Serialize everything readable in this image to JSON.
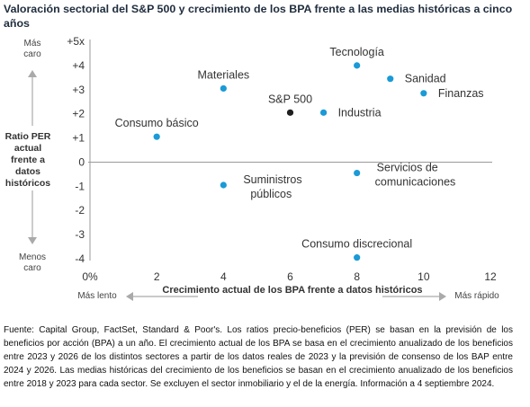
{
  "title": "Valoración sectorial del S&P 500 y crecimiento de los BPA frente a las medias históricas a cinco años",
  "y_axis_title": "Ratio PER actual frente a datos históricos",
  "y_top_hint": "Más caro",
  "y_bottom_hint": "Menos caro",
  "x_axis_title": "Crecimiento actual de los BPA frente a datos históricos",
  "x_left_hint": "Más lento",
  "x_right_hint": "Más rápido",
  "footnote": "Fuente: Capital Group, FactSet, Standard & Poor's. Los ratios precio-beneficios (PER) se basan en la previsión de los beneficios por acción (BPA) a un año. El crecimiento actual de los BPA se basa en el crecimiento anualizado de los beneficios entre 2023 y 2026 de los distintos sectores a partir de los datos reales de 2023 y la previsión de consenso de los BAP entre 2024 y 2026. Las medias históricas del crecimiento de los beneficios se basan en el crecimiento anualizado de los beneficios entre 2018 y 2023 para cada sector. Se excluyen el sector inmobiliario y el de la energía. Información a 4 septiembre 2024.",
  "colors": {
    "point": "#1a9ad6",
    "index_point": "#1f1f1f",
    "axis": "#9a9a9a"
  },
  "chart_data": {
    "type": "scatter",
    "xlim": [
      0,
      12
    ],
    "ylim": [
      -4,
      5
    ],
    "x_ticks": [
      0,
      2,
      4,
      6,
      8,
      10,
      12
    ],
    "x_tick_labels": [
      "0%",
      "2",
      "4",
      "6",
      "8",
      "10",
      "12"
    ],
    "y_ticks": [
      5,
      4,
      3,
      2,
      1,
      0,
      -1,
      -2,
      -3,
      -4
    ],
    "y_tick_labels": [
      "+5x",
      "+4",
      "+3",
      "+2",
      "+1",
      "0",
      "-1",
      "-2",
      "-3",
      "-4"
    ],
    "grid": false,
    "points": [
      {
        "label": "Tecnología",
        "x": 8,
        "y": 4.0,
        "color": "#1a9ad6",
        "label_pos": "above"
      },
      {
        "label": "Sanidad",
        "x": 9,
        "y": 3.45,
        "color": "#1a9ad6",
        "label_pos": "right"
      },
      {
        "label": "Finanzas",
        "x": 10,
        "y": 2.85,
        "color": "#1a9ad6",
        "label_pos": "right"
      },
      {
        "label": "Materiales",
        "x": 4,
        "y": 3.05,
        "color": "#1a9ad6",
        "label_pos": "above"
      },
      {
        "label": "S&P 500",
        "x": 6,
        "y": 2.05,
        "color": "#1f1f1f",
        "label_pos": "above"
      },
      {
        "label": "Industria",
        "x": 7,
        "y": 2.05,
        "color": "#1a9ad6",
        "label_pos": "right"
      },
      {
        "label": "Consumo básico",
        "x": 2,
        "y": 1.05,
        "color": "#1a9ad6",
        "label_pos": "above"
      },
      {
        "label": "Servicios de comunicaciones",
        "x": 8,
        "y": -0.45,
        "color": "#1a9ad6",
        "label_pos": "right"
      },
      {
        "label": "Suministros públicos",
        "x": 4,
        "y": -0.95,
        "color": "#1a9ad6",
        "label_pos": "right"
      },
      {
        "label": "Consumo discrecional",
        "x": 8,
        "y": -3.95,
        "color": "#1a9ad6",
        "label_pos": "above"
      }
    ]
  }
}
